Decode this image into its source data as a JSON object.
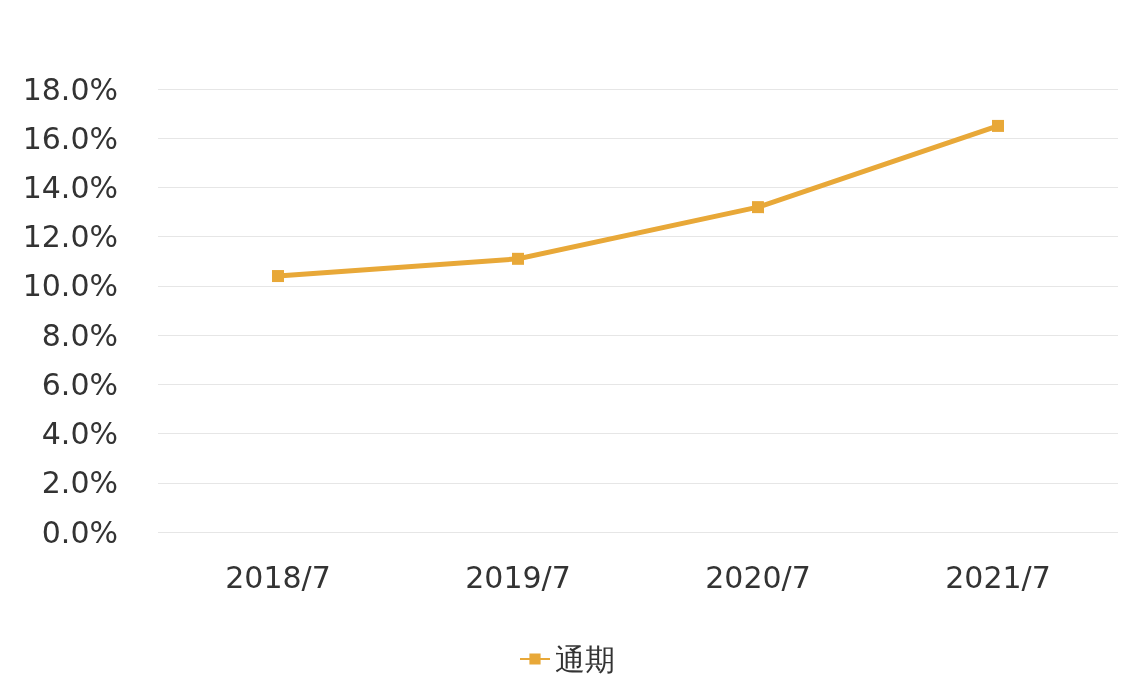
{
  "chart_data": {
    "type": "line",
    "categories": [
      "2018/7",
      "2019/7",
      "2020/7",
      "2021/7"
    ],
    "series": [
      {
        "name": "通期",
        "color": "#e8a838",
        "values": [
          10.4,
          11.1,
          13.2,
          16.5
        ]
      }
    ],
    "ylim": [
      0,
      18
    ],
    "yticks": [
      {
        "value": 0,
        "label": "0.0%"
      },
      {
        "value": 2,
        "label": "2.0%"
      },
      {
        "value": 4,
        "label": "4.0%"
      },
      {
        "value": 6,
        "label": "6.0%"
      },
      {
        "value": 8,
        "label": "8.0%"
      },
      {
        "value": 10,
        "label": "10.0%"
      },
      {
        "value": 12,
        "label": "12.0%"
      },
      {
        "value": 14,
        "label": "14.0%"
      },
      {
        "value": 16,
        "label": "16.0%"
      },
      {
        "value": 18,
        "label": "18.0%"
      }
    ],
    "grid": "y",
    "legend": "bottom",
    "marker": "square",
    "line_style": "solid"
  }
}
